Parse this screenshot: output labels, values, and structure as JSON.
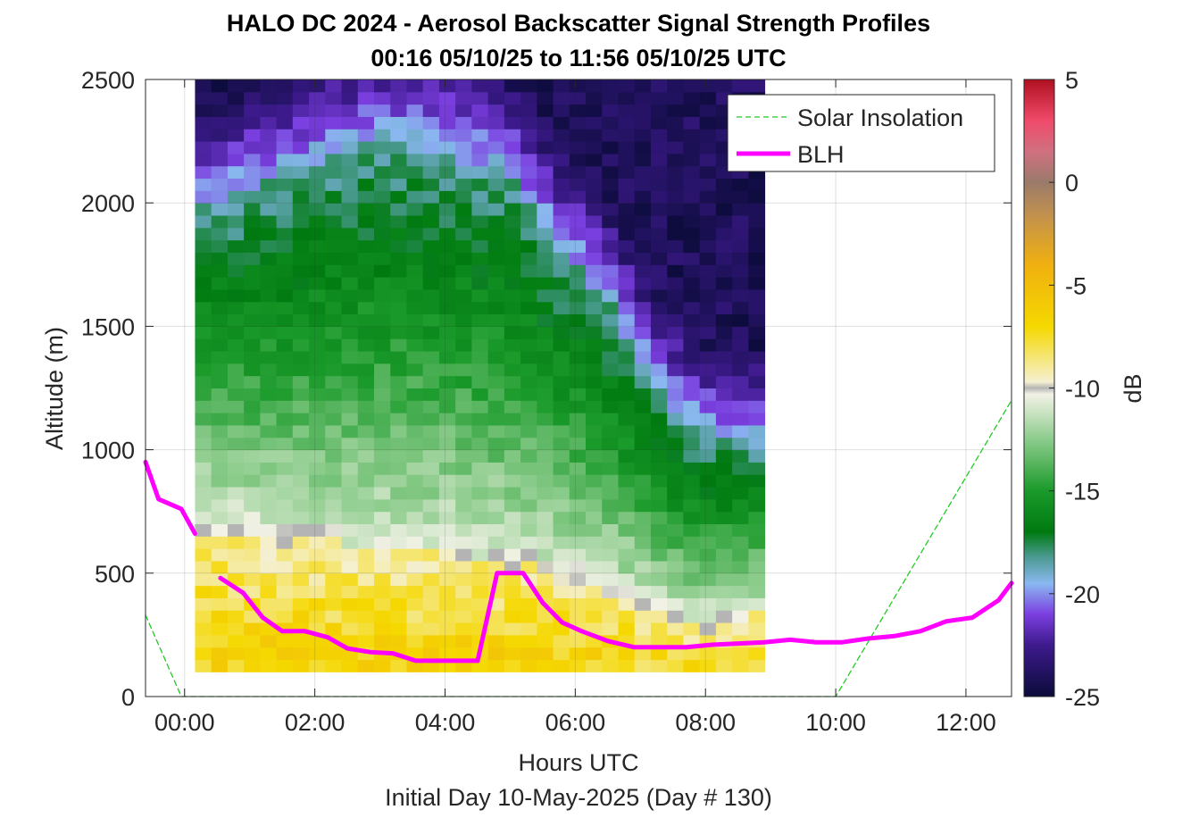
{
  "chart_data": {
    "type": "heatmap",
    "title_lines": [
      "HALO DC 2024 - Aerosol Backscatter Signal Strength Profiles",
      "00:16 05/10/25 to 11:56 05/10/25  UTC"
    ],
    "xlabel": "Hours UTC",
    "xlabel2": "Initial Day 10-May-2025 (Day # 130)",
    "ylabel": "Altitude (m)",
    "xlim": [
      -0.6,
      12.7
    ],
    "ylim": [
      0,
      2500
    ],
    "x_ticks": [
      0,
      2,
      4,
      6,
      8,
      10,
      12
    ],
    "x_tick_labels": [
      "00:00",
      "02:00",
      "04:00",
      "06:00",
      "08:00",
      "10:00",
      "12:00"
    ],
    "y_ticks": [
      0,
      500,
      1000,
      1500,
      2000,
      2500
    ],
    "y_tick_labels": [
      "0",
      "500",
      "1000",
      "1500",
      "2000",
      "2500"
    ],
    "colorbar": {
      "label": "dB",
      "range": [
        -25,
        5
      ],
      "ticks": [
        5,
        0,
        -5,
        -10,
        -15,
        -20,
        -25
      ],
      "tick_labels": [
        "5",
        "0",
        "-5",
        "-10",
        "-15",
        "-20",
        "-25"
      ],
      "stops": [
        {
          "v": -25,
          "c": "#0b0b3a"
        },
        {
          "v": -22.5,
          "c": "#3d1a8c"
        },
        {
          "v": -21,
          "c": "#7b3fe0"
        },
        {
          "v": -19.5,
          "c": "#8ab8f0"
        },
        {
          "v": -18.2,
          "c": "#4a9a90"
        },
        {
          "v": -17,
          "c": "#007a10"
        },
        {
          "v": -15,
          "c": "#1a9a2a"
        },
        {
          "v": -12.5,
          "c": "#8ccc8c"
        },
        {
          "v": -10.3,
          "c": "#f2f2e6"
        },
        {
          "v": -10,
          "c": "#b4b4b4"
        },
        {
          "v": -9.7,
          "c": "#f5f0d0"
        },
        {
          "v": -7,
          "c": "#f5d800"
        },
        {
          "v": -4,
          "c": "#f0b010"
        },
        {
          "v": -1.5,
          "c": "#c09050"
        },
        {
          "v": 0,
          "c": "#9a7a6a"
        },
        {
          "v": 1.5,
          "c": "#d07080"
        },
        {
          "v": 3,
          "c": "#f04a6a"
        },
        {
          "v": 5,
          "c": "#b01020"
        }
      ]
    },
    "heatmap": {
      "x_start": 0.16,
      "x_step": 0.25,
      "y_start": 100,
      "y_step": 50,
      "columns": 35,
      "rows": 48,
      "note_values": "dB per altitude bin, profiles every 15 min"
    },
    "series": [
      {
        "name": "Solar Insolation",
        "color": "#22cc22",
        "style": "dashed",
        "x": [
          -0.6,
          -0.05,
          10.0,
          12.7
        ],
        "y": [
          330,
          0,
          0,
          1200
        ]
      },
      {
        "name": "BLH",
        "color": "#ff00ff",
        "style": "solid",
        "segments": [
          {
            "x": [
              -0.6,
              -0.4,
              -0.05,
              0.16
            ],
            "y": [
              950,
              800,
              760,
              660
            ]
          },
          {
            "x": [
              0.55,
              0.9,
              1.2,
              1.5,
              1.85,
              2.2,
              2.5,
              2.85,
              3.2,
              3.55,
              3.9,
              4.2,
              4.5,
              4.8,
              5.2,
              5.5,
              5.8,
              6.1,
              6.5,
              6.9,
              7.3,
              7.7,
              8.1,
              8.5,
              8.9,
              9.3,
              9.7,
              10.1,
              10.5,
              10.9,
              11.3,
              11.7,
              12.1,
              12.5,
              12.7
            ],
            "y": [
              480,
              420,
              320,
              265,
              265,
              240,
              195,
              180,
              175,
              145,
              145,
              145,
              145,
              500,
              500,
              380,
              300,
              265,
              225,
              200,
              200,
              200,
              210,
              215,
              220,
              230,
              220,
              220,
              235,
              245,
              265,
              305,
              320,
              390,
              460
            ]
          }
        ]
      }
    ],
    "legend": {
      "position": "top-right",
      "entries": [
        "Solar Insolation",
        "BLH"
      ]
    },
    "grid": true
  }
}
